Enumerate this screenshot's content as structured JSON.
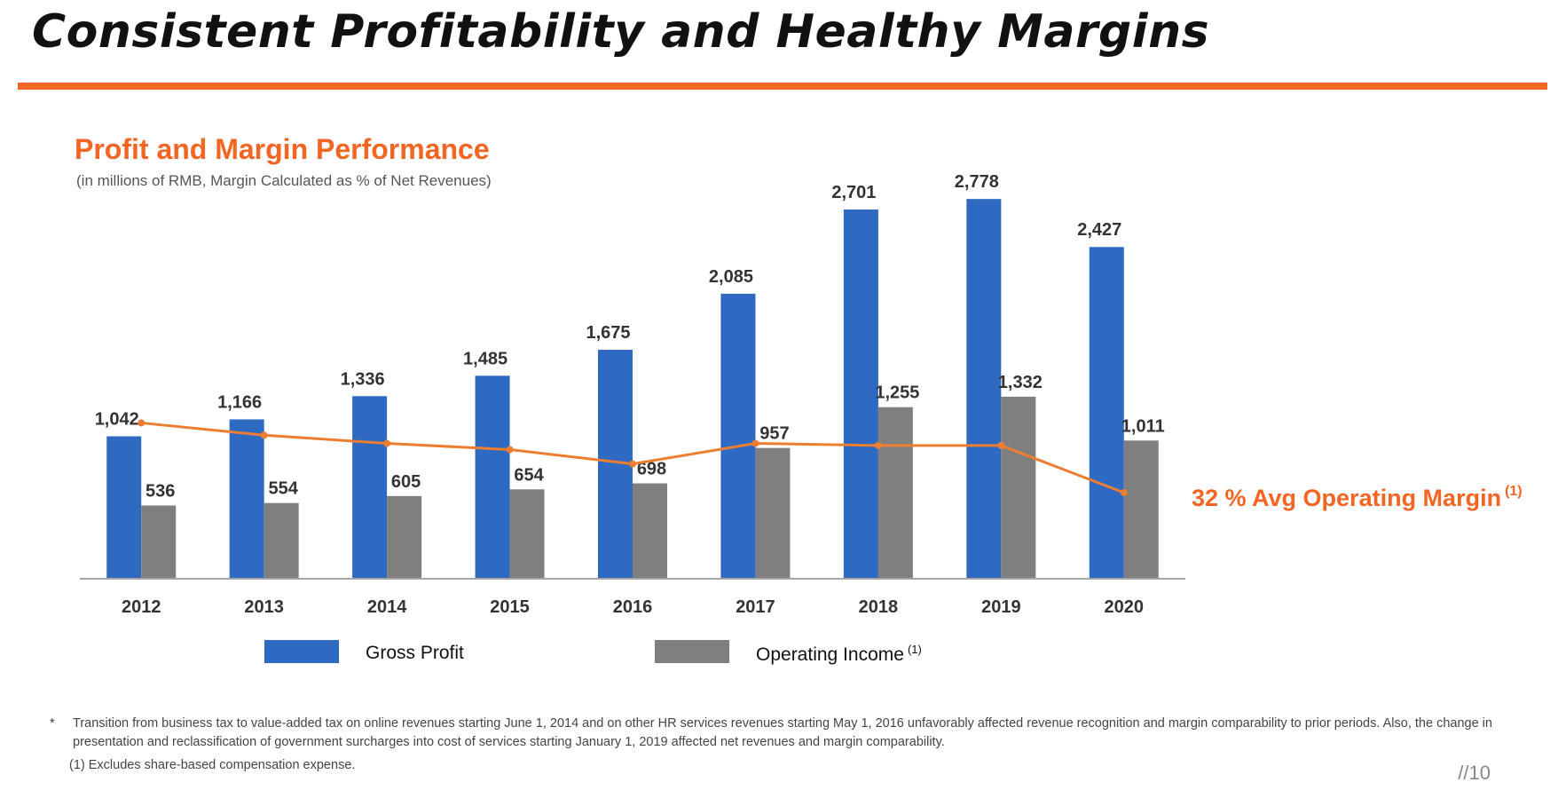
{
  "slide": {
    "title": "Consistent Profitability and Healthy Margins",
    "page_number": "//10"
  },
  "chart_heading": "Profit and Margin Performance",
  "chart_subtitle": "(in millions of RMB, Margin Calculated as % of Net Revenues)",
  "avg_margin": {
    "label": "32 % Avg Operating Margin",
    "note": "(1)"
  },
  "legend": {
    "gross_profit": "Gross Profit",
    "operating_income": "Operating Income",
    "operating_income_note": "(1)"
  },
  "footnotes": {
    "star": "*",
    "text": "Transition from business tax to value-added tax on online revenues starting June 1, 2014 and on other HR services revenues starting May 1, 2016 unfavorably affected revenue recognition and margin comparability to prior periods. Also, the change in presentation and reclassification of government surcharges into cost of services starting January 1, 2019 affected net revenues and margin comparability.",
    "note": "(1) Excludes share-based compensation expense."
  },
  "colors": {
    "accent": "#f26522",
    "gross_profit": "#2e6ac1",
    "operating_income": "#7f7f7f",
    "margin_line": "#ed7d31",
    "axis": "#a6a6a6"
  },
  "chart_data": {
    "type": "bar",
    "title": "Profit and Margin Performance",
    "subtitle": "(in millions of RMB, Margin Calculated as % of Net Revenues)",
    "categories": [
      "2012",
      "2013",
      "2014",
      "2015",
      "2016",
      "2017",
      "2018",
      "2019",
      "2020"
    ],
    "series": [
      {
        "name": "Gross Profit",
        "values": [
          1042,
          1166,
          1336,
          1485,
          1675,
          2085,
          2701,
          2778,
          2427
        ],
        "labels": [
          "1,042",
          "1,166",
          "1,336",
          "1,485",
          "1,675",
          "2,085",
          "2,701",
          "2,778",
          "2,427"
        ],
        "color": "#2e6ac1"
      },
      {
        "name": "Operating Income",
        "values": [
          536,
          554,
          605,
          654,
          698,
          957,
          1255,
          1332,
          1011
        ],
        "labels": [
          "536",
          "554",
          "605",
          "654",
          "698",
          "957",
          "1,255",
          "1,332",
          "1,011"
        ],
        "color": "#7f7f7f"
      }
    ],
    "line": {
      "name": "Operating Margin (%)",
      "values": [
        38,
        35,
        33,
        31.5,
        28,
        33,
        32.5,
        32.5,
        21
      ],
      "ylim": [
        0,
        100
      ],
      "color": "#ed7d31"
    },
    "ylim": [
      0,
      3000
    ],
    "xlabel": "",
    "ylabel": "",
    "grid": false,
    "legend": "bottom"
  }
}
